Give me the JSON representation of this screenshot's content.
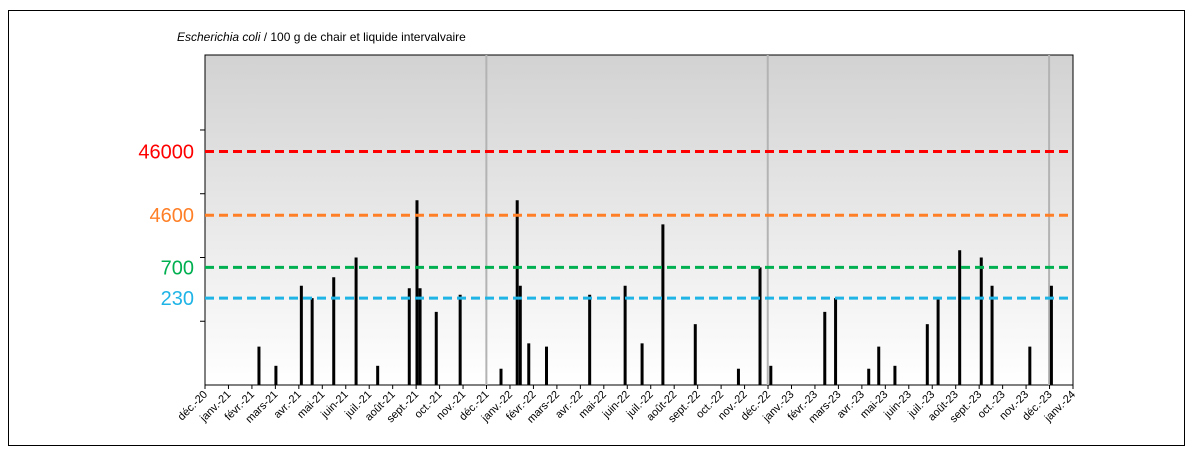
{
  "chart_data": {
    "type": "bar",
    "title_italic": "Escherichia coli",
    "title_rest": " / 100 g de chair et liquide intervalvaire",
    "xlabel": "",
    "ylabel": "",
    "yscale": "log",
    "threshold_labels": [
      "46000",
      "4600",
      "700",
      "230"
    ],
    "thresholds": [
      {
        "value": 46000,
        "label": "46000",
        "color": "#ff0000"
      },
      {
        "value": 4600,
        "label": "4600",
        "color": "#ff7f27"
      },
      {
        "value": 700,
        "label": "700",
        "color": "#00b050"
      },
      {
        "value": 230,
        "label": "230",
        "color": "#1fb4e6"
      }
    ],
    "x_ticks": [
      "déc.-20",
      "janv.-21",
      "févr.-21",
      "mars-21",
      "avr.-21",
      "mai-21",
      "juin-21",
      "juil.-21",
      "août-21",
      "sept.-21",
      "oct.-21",
      "nov.-21",
      "déc.-21",
      "janv.-22",
      "févr.-22",
      "mars-22",
      "avr.-22",
      "mai-22",
      "juin-22",
      "juil.-22",
      "août-22",
      "sept.-22",
      "oct.-22",
      "nov.-22",
      "déc.-22",
      "janv.-23",
      "févr.-23",
      "mars-23",
      "avr.-23",
      "mai-23",
      "juin-23",
      "juil.-23",
      "août-23",
      "sept.-23",
      "oct.-23",
      "nov.-23",
      "déc.-23",
      "janv.-24"
    ],
    "x_start": "2020-12-01",
    "x_end": "2024-01-01",
    "year_separators": [
      "2021-12-01",
      "2022-12-01",
      "2023-12-01"
    ],
    "points": [
      {
        "date": "2021-02-09",
        "value": 40
      },
      {
        "date": "2021-03-03",
        "value": 20
      },
      {
        "date": "2021-04-05",
        "value": 360
      },
      {
        "date": "2021-04-19",
        "value": 230
      },
      {
        "date": "2021-05-17",
        "value": 490
      },
      {
        "date": "2021-06-15",
        "value": 1000
      },
      {
        "date": "2021-07-13",
        "value": 20
      },
      {
        "date": "2021-08-23",
        "value": 330
      },
      {
        "date": "2021-09-02",
        "value": 7900
      },
      {
        "date": "2021-09-06",
        "value": 330
      },
      {
        "date": "2021-09-27",
        "value": 140
      },
      {
        "date": "2021-10-28",
        "value": 260
      },
      {
        "date": "2021-12-20",
        "value": 18
      },
      {
        "date": "2022-01-10",
        "value": 7900
      },
      {
        "date": "2022-01-14",
        "value": 360
      },
      {
        "date": "2022-01-25",
        "value": 45
      },
      {
        "date": "2022-02-17",
        "value": 40
      },
      {
        "date": "2022-04-14",
        "value": 260
      },
      {
        "date": "2022-05-30",
        "value": 360
      },
      {
        "date": "2022-06-21",
        "value": 45
      },
      {
        "date": "2022-07-18",
        "value": 3300
      },
      {
        "date": "2022-08-29",
        "value": 90
      },
      {
        "date": "2022-10-24",
        "value": 18
      },
      {
        "date": "2022-11-21",
        "value": 700
      },
      {
        "date": "2022-12-05",
        "value": 20
      },
      {
        "date": "2023-02-13",
        "value": 140
      },
      {
        "date": "2023-02-27",
        "value": 230
      },
      {
        "date": "2023-04-11",
        "value": 18
      },
      {
        "date": "2023-04-24",
        "value": 40
      },
      {
        "date": "2023-05-15",
        "value": 20
      },
      {
        "date": "2023-06-26",
        "value": 90
      },
      {
        "date": "2023-07-10",
        "value": 230
      },
      {
        "date": "2023-08-07",
        "value": 1300
      },
      {
        "date": "2023-09-04",
        "value": 1000
      },
      {
        "date": "2023-09-18",
        "value": 360
      },
      {
        "date": "2023-11-06",
        "value": 40
      },
      {
        "date": "2023-12-04",
        "value": 360
      }
    ],
    "colors": {
      "bar": "#000000",
      "separator": "#b3b3b3",
      "plot_top": "#d2d2d2",
      "plot_bottom": "#ffffff"
    }
  }
}
